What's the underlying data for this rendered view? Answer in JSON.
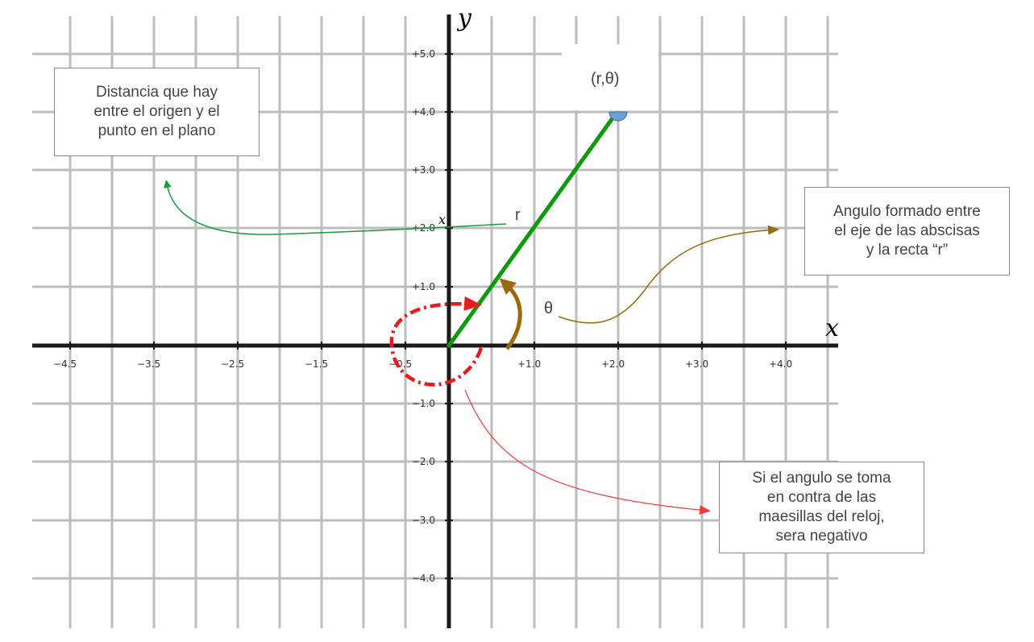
{
  "axes": {
    "x_title": "x",
    "y_title": "y",
    "x_ticks": [
      "−4.5",
      "−3.5",
      "−2.5",
      "−1.5",
      "−0.5",
      "+1.0",
      "+2.0",
      "+3.0",
      "+4.0"
    ],
    "y_ticks": [
      "+5.0",
      "+4.0",
      "+3.0",
      "+2.0",
      "+1.0",
      "−1.0",
      "−2.0",
      "−3.0",
      "−4.0"
    ]
  },
  "labels": {
    "point": "(r,θ)",
    "radius": "r",
    "angle": "θ",
    "small_x": "x"
  },
  "notes": {
    "distance": [
      "Distancia que hay",
      "entre el origen y el",
      "punto en el plano"
    ],
    "angle": [
      "Angulo formado entre",
      "el  eje de las abscisas",
      "y la recta “r”"
    ],
    "negative": [
      "Si el angulo se toma",
      "en contra de las",
      "maesillas del reloj,",
      "sera negativo"
    ]
  },
  "colors": {
    "grid": "#bdbdbd",
    "axis": "#1a1a1a",
    "radius_line": "#0a9a0a",
    "point": "#6a9fd8",
    "angle_arrow": "#9a6a08",
    "negative_arrow": "#e81c1c",
    "note_arrow_distance": "#1a9a3a",
    "note_arrow_negative": "#ee3a3a"
  }
}
